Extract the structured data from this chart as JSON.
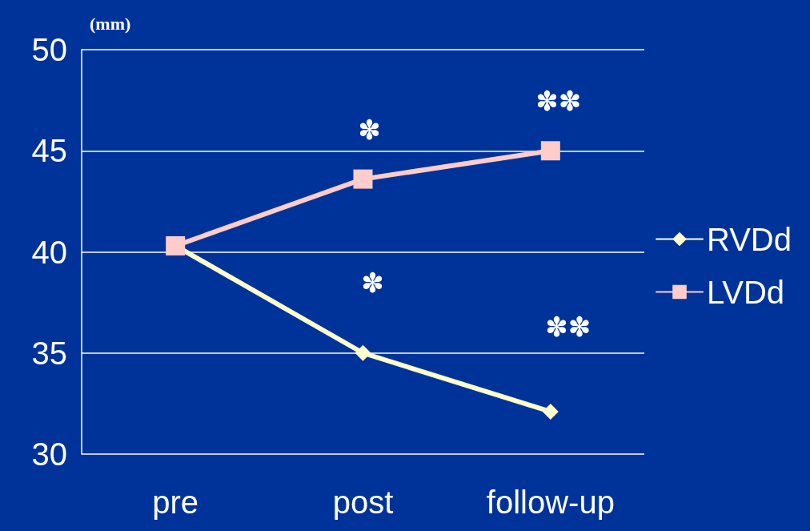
{
  "chart_data": {
    "type": "line",
    "ylabel": "(mm)",
    "categories": [
      "pre",
      "post",
      "follow-up"
    ],
    "series": [
      {
        "name": "RVDd",
        "color": "#ffffcc",
        "marker": "diamond",
        "values": [
          40.3,
          35.0,
          32.1
        ]
      },
      {
        "name": "LVDd",
        "color": "#ffcccc",
        "marker": "square",
        "values": [
          40.3,
          43.6,
          45.0
        ]
      }
    ],
    "ylim": [
      30,
      50
    ],
    "yticks": [
      30,
      35,
      40,
      45,
      50
    ],
    "grid": "y",
    "legend": "right",
    "annotations": [
      "✽",
      "✽✽",
      "✽",
      "✽✽"
    ]
  }
}
